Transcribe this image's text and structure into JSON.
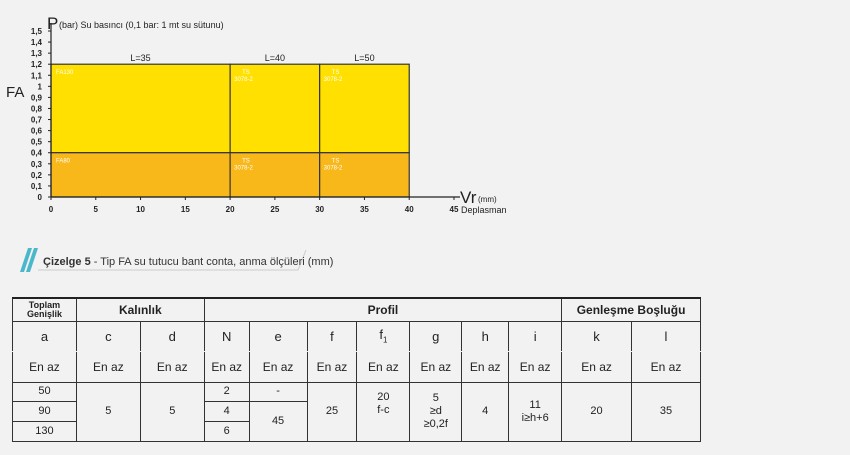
{
  "chart_data": {
    "type": "area",
    "ylabel_symbol": "P",
    "ylabel_text": "(bar) Su basıncı (0,1 bar: 1 mt su sütunu)",
    "side_label": "FA",
    "xlabel_symbol": "Vr",
    "xlabel_unit": "(mm)",
    "xlabel_text": "Deplasman",
    "x_ticks": [
      "0",
      "5",
      "10",
      "15",
      "20",
      "25",
      "30",
      "35",
      "40",
      "45"
    ],
    "y_ticks": [
      "0",
      "0,1",
      "0,2",
      "0,3",
      "0,4",
      "0,5",
      "0,6",
      "0,7",
      "0,8",
      "0,9",
      "1",
      "1,1",
      "1,2",
      "1,3",
      "1,4",
      "1,5"
    ],
    "xlim": [
      0,
      45
    ],
    "ylim": [
      0,
      1.5
    ],
    "colors": {
      "upper": "#FFE000",
      "lower": "#F9B81A",
      "outline": "#333333"
    },
    "regions": [
      {
        "label": "FA130",
        "x": [
          0,
          20
        ],
        "y": [
          0.4,
          1.2
        ]
      },
      {
        "label": "FA80",
        "x": [
          0,
          20
        ],
        "y": [
          0,
          0.4
        ]
      },
      {
        "label": "TS\n3078-2",
        "x": [
          20,
          30
        ],
        "y": [
          0.4,
          1.2
        ]
      },
      {
        "label": "TS\n3078-2",
        "x": [
          20,
          30
        ],
        "y": [
          0,
          0.4
        ]
      },
      {
        "label": "TS\n3078-2",
        "x": [
          30,
          40
        ],
        "y": [
          0.4,
          1.2
        ]
      },
      {
        "label": "TS\n3078-2",
        "x": [
          30,
          40
        ],
        "y": [
          0,
          0.4
        ]
      }
    ],
    "segments": [
      {
        "label": "L=35",
        "x": [
          0,
          20
        ]
      },
      {
        "label": "L=40",
        "x": [
          20,
          30
        ]
      },
      {
        "label": "L=50",
        "x": [
          30,
          40
        ]
      }
    ]
  },
  "caption": {
    "title": "Çizelge 5",
    "text": " - Tip FA su tutucu bant conta, anma ölçüleri (mm)",
    "accent_color": "#4BB8C9"
  },
  "table": {
    "group_headers": {
      "toplam_1": "Toplam",
      "toplam_2": "Genişlik",
      "kalinlik": "Kalınlık",
      "profil": "Profil",
      "genlesme": "Genleşme Boşluğu"
    },
    "symbols": {
      "a": "a",
      "c": "c",
      "d": "d",
      "N": "N",
      "e": "e",
      "f": "f",
      "f1": "f",
      "f1_sub": "1",
      "g": "g",
      "h": "h",
      "i": "i",
      "k": "k",
      "l": "l"
    },
    "en_az": "En az",
    "values": {
      "a": [
        "50",
        "90",
        "130"
      ],
      "c": "5",
      "d": "5",
      "N": [
        "2",
        "4",
        "6"
      ],
      "e": [
        "-",
        "45"
      ],
      "f": "25",
      "f1": [
        "20",
        "f-c"
      ],
      "g": [
        "5",
        "≥d",
        "≥0,2f"
      ],
      "h": "4",
      "i": [
        "11",
        "i≥h+6"
      ],
      "k": "20",
      "l": "35"
    }
  }
}
